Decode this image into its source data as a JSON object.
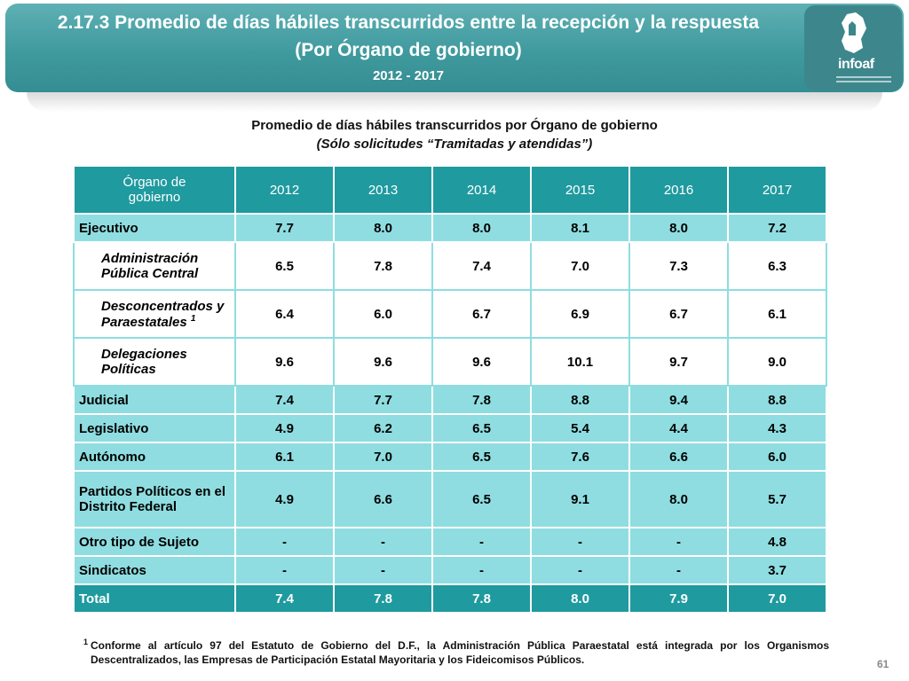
{
  "header": {
    "title_line1": "2.17.3 Promedio de días hábiles transcurridos entre la recepción y la respuesta",
    "title_line2": "(Por Órgano de gobierno)",
    "title_line3": "2012 - 2017",
    "logo_text": "infoaf"
  },
  "table_title": {
    "line1": "Promedio de días hábiles transcurridos por Órgano de gobierno",
    "line2": "(Sólo solicitudes “Tramitadas y atendidas”)"
  },
  "table": {
    "header": {
      "organ_line1": "Órgano de",
      "organ_line2": "gobierno",
      "years": [
        "2012",
        "2013",
        "2014",
        "2015",
        "2016",
        "2017"
      ]
    },
    "rows": [
      {
        "line1": "Ejecutivo",
        "line2": "",
        "sup": "",
        "values": [
          "7.7",
          "8.0",
          "8.0",
          "8.1",
          "8.0",
          "7.2"
        ]
      },
      {
        "line1": "Administración",
        "line2": "Pública Central",
        "sup": "",
        "values": [
          "6.5",
          "7.8",
          "7.4",
          "7.0",
          "7.3",
          "6.3"
        ]
      },
      {
        "line1": "Desconcentrados y",
        "line2": "Paraestatales",
        "sup": "1",
        "values": [
          "6.4",
          "6.0",
          "6.7",
          "6.9",
          "6.7",
          "6.1"
        ]
      },
      {
        "line1": "Delegaciones",
        "line2": "Políticas",
        "sup": "",
        "values": [
          "9.6",
          "9.6",
          "9.6",
          "10.1",
          "9.7",
          "9.0"
        ]
      },
      {
        "line1": "Judicial",
        "line2": "",
        "sup": "",
        "values": [
          "7.4",
          "7.7",
          "7.8",
          "8.8",
          "9.4",
          "8.8"
        ]
      },
      {
        "line1": "Legislativo",
        "line2": "",
        "sup": "",
        "values": [
          "4.9",
          "6.2",
          "6.5",
          "5.4",
          "4.4",
          "4.3"
        ]
      },
      {
        "line1": "Autónomo",
        "line2": "",
        "sup": "",
        "values": [
          "6.1",
          "7.0",
          "6.5",
          "7.6",
          "6.6",
          "6.0"
        ]
      },
      {
        "line1": "Partidos Políticos en el",
        "line2": "Distrito Federal",
        "sup": "",
        "values": [
          "4.9",
          "6.6",
          "6.5",
          "9.1",
          "8.0",
          "5.7"
        ]
      },
      {
        "line1": "Otro tipo de Sujeto",
        "line2": "",
        "sup": "",
        "values": [
          "-",
          "-",
          "-",
          "-",
          "-",
          "4.8"
        ]
      },
      {
        "line1": "Sindicatos",
        "line2": "",
        "sup": "",
        "values": [
          "-",
          "-",
          "-",
          "-",
          "-",
          "3.7"
        ]
      },
      {
        "line1": "Total",
        "line2": "",
        "sup": "",
        "values": [
          "7.4",
          "7.8",
          "7.8",
          "8.0",
          "7.9",
          "7.0"
        ]
      }
    ]
  },
  "footnote": {
    "mark": "1",
    "text": "Conforme al artículo 97 del Estatuto de Gobierno del D.F., la Administración Pública Paraestatal está integrada por los Organismos Descentralizados, las Empresas de Participación Estatal Mayoritaria y los Fideicomisos Públicos."
  },
  "page_number": "61"
}
